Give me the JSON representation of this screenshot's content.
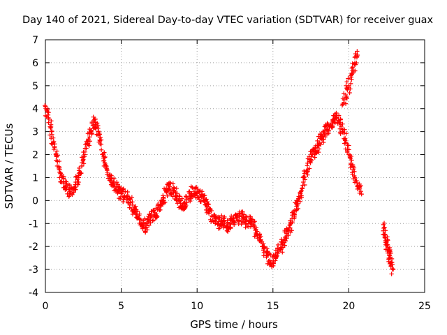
{
  "chart_data": {
    "type": "scatter",
    "title": "Day 140 of 2021, Sidereal Day-to-day VTEC variation (SDTVAR) for receiver guax",
    "xlabel": "GPS time / hours",
    "ylabel": "SDTVAR / TECUs",
    "xlim": [
      0,
      25
    ],
    "ylim": [
      -4,
      7
    ],
    "x_ticks": [
      "0",
      "5",
      "10",
      "15",
      "20",
      "25"
    ],
    "y_ticks": [
      "-4",
      "-3",
      "-2",
      "-1",
      "0",
      "1",
      "2",
      "3",
      "4",
      "5",
      "6",
      "7"
    ],
    "grid": true,
    "marker": "plus",
    "color": "#ff0000",
    "series": [
      {
        "name": "SDTVAR",
        "segments": [
          {
            "x": [
              0.0,
              0.2,
              0.4,
              0.6,
              0.8,
              1.0,
              1.2,
              1.4,
              1.6,
              1.8,
              2.0,
              2.2,
              2.4,
              2.6,
              2.8,
              3.0,
              3.2,
              3.4,
              3.6,
              3.8,
              4.0,
              4.2,
              4.4,
              4.6,
              4.8,
              5.0,
              5.2,
              5.4,
              5.6,
              5.8,
              6.0,
              6.2,
              6.4,
              6.6,
              6.8,
              7.0,
              7.2,
              7.4,
              7.6,
              7.8,
              8.0,
              8.2,
              8.4,
              8.6,
              8.8,
              9.0,
              9.2,
              9.4,
              9.6,
              9.8,
              10.0,
              10.2,
              10.4,
              10.6,
              10.8,
              11.0,
              11.2,
              11.4,
              11.6,
              11.8,
              12.0,
              12.2,
              12.4,
              12.6,
              12.8,
              13.0,
              13.2,
              13.4,
              13.6,
              13.8,
              14.0,
              14.2,
              14.4,
              14.6,
              14.8,
              15.0,
              15.2,
              15.4,
              15.6,
              15.8,
              16.0,
              16.2,
              16.4,
              16.6,
              16.8,
              17.0,
              17.2,
              17.4,
              17.6,
              17.8,
              18.0,
              18.2,
              18.4,
              18.6,
              18.8,
              19.0,
              19.2,
              19.4,
              19.6,
              19.8,
              20.0,
              20.2,
              20.4,
              20.6,
              20.8
            ],
            "y": [
              4.1,
              3.6,
              3.0,
              2.3,
              1.7,
              1.2,
              0.8,
              0.5,
              0.4,
              0.5,
              0.8,
              1.0,
              1.5,
              2.0,
              2.6,
              3.0,
              3.5,
              3.2,
              2.6,
              2.0,
              1.5,
              1.1,
              0.8,
              0.6,
              0.5,
              0.3,
              0.2,
              0.1,
              -0.1,
              -0.4,
              -0.6,
              -0.8,
              -1.0,
              -1.2,
              -0.9,
              -0.7,
              -0.6,
              -0.4,
              -0.2,
              0.1,
              0.4,
              0.6,
              0.5,
              0.2,
              0.0,
              -0.2,
              -0.1,
              0.1,
              0.3,
              0.4,
              0.3,
              0.2,
              0.1,
              -0.2,
              -0.5,
              -0.7,
              -0.9,
              -1.0,
              -0.9,
              -1.0,
              -1.1,
              -1.0,
              -0.9,
              -0.8,
              -0.7,
              -0.8,
              -0.9,
              -1.0,
              -0.9,
              -1.2,
              -1.5,
              -1.8,
              -2.1,
              -2.4,
              -2.6,
              -2.7,
              -2.5,
              -2.2,
              -1.9,
              -1.6,
              -1.3,
              -1.0,
              -0.6,
              -0.2,
              0.3,
              0.8,
              1.3,
              1.7,
              2.0,
              2.2,
              2.4,
              2.7,
              2.9,
              3.1,
              3.3,
              3.5,
              3.6,
              3.4,
              3.0,
              2.5,
              2.0,
              1.5,
              1.0,
              0.6,
              0.4
            ]
          },
          {
            "x": [
              19.6,
              19.8,
              20.0,
              20.2,
              20.4,
              20.55
            ],
            "y": [
              4.2,
              4.6,
              5.0,
              5.5,
              6.0,
              6.5
            ]
          },
          {
            "x": [
              22.3,
              22.4,
              22.5,
              22.6,
              22.7,
              22.8,
              22.9
            ],
            "y": [
              -1.2,
              -1.5,
              -1.8,
              -2.1,
              -2.4,
              -2.7,
              -3.0
            ]
          }
        ]
      }
    ]
  }
}
